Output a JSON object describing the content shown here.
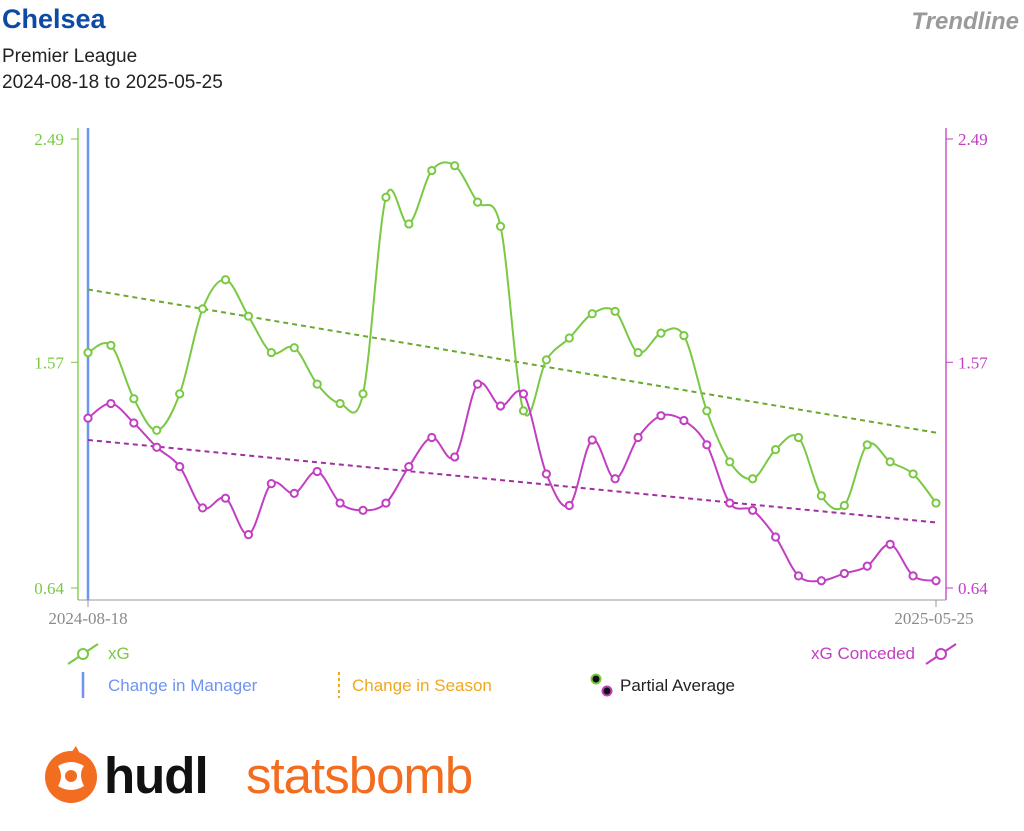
{
  "header": {
    "team": "Chelsea",
    "competition": "Premier League",
    "date_range": "2024-08-18 to 2025-05-25",
    "chart_type": "Trendline"
  },
  "legend": {
    "xg": "xG",
    "xg_conceded": "xG Conceded",
    "change_manager": "Change in Manager",
    "change_season": "Change in Season",
    "partial_average": "Partial Average"
  },
  "brand": {
    "part1": "hudl",
    "part2": "statsbomb"
  },
  "colors": {
    "xg": "#7ac943",
    "xg_trend": "#6aa82e",
    "xg_conceded": "#c23ec2",
    "xg_conceded_trend": "#a0309f",
    "manager_line": "#6f94f0",
    "season_line": "#f0a820",
    "brand_orange": "#f36d21"
  },
  "chart_data": {
    "type": "line",
    "x_start_label": "2024-08-18",
    "x_end_label": "2025-05-25",
    "ylim": [
      0.64,
      2.49
    ],
    "yticks": [
      "2.49",
      "1.57",
      "0.64"
    ],
    "manager_change_index": 0,
    "series": [
      {
        "name": "xG",
        "axis": "left",
        "values": [
          1.61,
          1.64,
          1.42,
          1.29,
          1.44,
          1.79,
          1.91,
          1.76,
          1.61,
          1.63,
          1.48,
          1.4,
          1.44,
          2.25,
          2.14,
          2.36,
          2.38,
          2.23,
          2.13,
          1.37,
          1.58,
          1.67,
          1.77,
          1.78,
          1.61,
          1.69,
          1.68,
          1.37,
          1.16,
          1.09,
          1.21,
          1.26,
          1.02,
          0.98,
          1.23,
          1.16,
          1.11,
          0.99
        ],
        "trend": [
          1.87,
          1.28
        ]
      },
      {
        "name": "xG Conceded",
        "axis": "right",
        "values": [
          1.34,
          1.4,
          1.32,
          1.22,
          1.14,
          0.97,
          1.01,
          0.86,
          1.07,
          1.03,
          1.12,
          0.99,
          0.96,
          0.99,
          1.14,
          1.26,
          1.18,
          1.48,
          1.39,
          1.44,
          1.11,
          0.98,
          1.25,
          1.09,
          1.26,
          1.35,
          1.33,
          1.23,
          0.99,
          0.96,
          0.85,
          0.69,
          0.67,
          0.7,
          0.73,
          0.82,
          0.69,
          0.67
        ],
        "trend": [
          1.25,
          0.91
        ]
      }
    ]
  }
}
